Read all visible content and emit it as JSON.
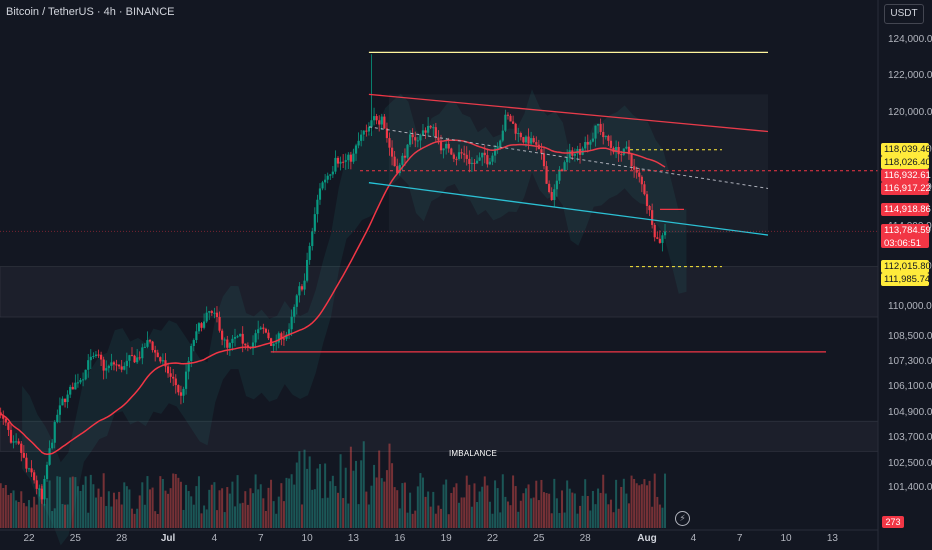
{
  "header": {
    "symbol_title": "Bitcoin / TetherUS · 4h · BINANCE",
    "currency": "USDT"
  },
  "colors": {
    "background": "#131722",
    "up": "#26a69a",
    "down": "#ef5350",
    "up_body": "#089981",
    "down_body": "#f23645",
    "ma_line": "#f23645",
    "channel_upper": "#f23645",
    "channel_lower": "#26c6da",
    "high_line": "#fff59d",
    "yellow_tag": "#ffeb3b",
    "red_tag": "#f23645"
  },
  "chart_data": {
    "type": "candlestick",
    "timeframe": "4h",
    "x_ticks": [
      "22",
      "25",
      "28",
      "Jul",
      "4",
      "7",
      "10",
      "13",
      "16",
      "19",
      "22",
      "25",
      "28",
      "Aug",
      "4",
      "7",
      "10",
      "13"
    ],
    "y_ticks": [
      101400,
      102500,
      103700,
      104900,
      106100,
      107300,
      108500,
      110000,
      112000,
      114000,
      116000,
      118000,
      120000,
      122000,
      124000
    ],
    "y_tick_labels": [
      "101,400.00",
      "102,500.00",
      "103,700.00",
      "104,900.00",
      "106,100.00",
      "107,300.00",
      "108,500.00",
      "110,000.00",
      "112,000.00",
      "114,000.00",
      "116,000.00",
      "118,000.00",
      "120,000.00",
      "122,000.00",
      "124,000.00"
    ],
    "y_scale": "log",
    "ylim": [
      100600,
      124600
    ],
    "last_price": 113784.59,
    "last_price_label": "113,784.59",
    "bar_countdown": "03:06:51",
    "price_tags": [
      {
        "value": 118039.46,
        "label": "118,039.46",
        "color": "yellow"
      },
      {
        "value": 118026.4,
        "label": "118,026.40",
        "color": "yellow"
      },
      {
        "value": 116932.61,
        "label": "116,932.61",
        "color": "red"
      },
      {
        "value": 116917.22,
        "label": "116,917.22",
        "color": "red"
      },
      {
        "value": 114918.86,
        "label": "114,918.86",
        "color": "red"
      },
      {
        "value": 112015.8,
        "label": "112,015.80",
        "color": "yellow"
      },
      {
        "value": 111985.74,
        "label": "111,985.74",
        "color": "yellow"
      }
    ],
    "volume_last_label": "273",
    "annotations": [
      {
        "type": "zone",
        "label": "IMBALANCE",
        "from": 103100,
        "to": 104500
      },
      {
        "type": "zone",
        "label": "",
        "from": 109500,
        "to": 112000
      },
      {
        "type": "hline",
        "label": "",
        "value": 123300
      },
      {
        "type": "hline",
        "label": "",
        "value": 107800
      },
      {
        "type": "channel_upper",
        "label": "",
        "start": 121000,
        "end": 119000
      },
      {
        "type": "channel_lower",
        "label": "",
        "start": 116300,
        "end": 113600
      }
    ],
    "anchors": [
      {
        "date": "2025-06-20",
        "close": 103500
      },
      {
        "date": "2025-06-21",
        "close": 102300
      },
      {
        "date": "2025-06-22",
        "close": 100900
      },
      {
        "date": "2025-06-23",
        "close": 104800
      },
      {
        "date": "2025-06-24",
        "close": 106000
      },
      {
        "date": "2025-06-25",
        "close": 107400
      },
      {
        "date": "2025-06-26",
        "close": 106900
      },
      {
        "date": "2025-06-27",
        "close": 107100
      },
      {
        "date": "2025-06-28",
        "close": 107300
      },
      {
        "date": "2025-06-29",
        "close": 108300
      },
      {
        "date": "2025-06-30",
        "close": 107100
      },
      {
        "date": "2025-07-01",
        "close": 105700
      },
      {
        "date": "2025-07-02",
        "close": 108800
      },
      {
        "date": "2025-07-03",
        "close": 109700
      },
      {
        "date": "2025-07-04",
        "close": 108000
      },
      {
        "date": "2025-07-05",
        "close": 108200
      },
      {
        "date": "2025-07-06",
        "close": 108900
      },
      {
        "date": "2025-07-07",
        "close": 108200
      },
      {
        "date": "2025-07-08",
        "close": 108900
      },
      {
        "date": "2025-07-09",
        "close": 111300
      },
      {
        "date": "2025-07-10",
        "close": 116000
      },
      {
        "date": "2025-07-11",
        "close": 117600
      },
      {
        "date": "2025-07-12",
        "close": 117400
      },
      {
        "date": "2025-07-13",
        "close": 119000
      },
      {
        "date": "2025-07-14",
        "close": 119800
      },
      {
        "date": "2025-07-15",
        "close": 116800
      },
      {
        "date": "2025-07-16",
        "close": 118700
      },
      {
        "date": "2025-07-17",
        "close": 119300
      },
      {
        "date": "2025-07-18",
        "close": 118100
      },
      {
        "date": "2025-07-19",
        "close": 117900
      },
      {
        "date": "2025-07-20",
        "close": 117300
      },
      {
        "date": "2025-07-21",
        "close": 117400
      },
      {
        "date": "2025-07-22",
        "close": 119900
      },
      {
        "date": "2025-07-23",
        "close": 118700
      },
      {
        "date": "2025-07-24",
        "close": 118300
      },
      {
        "date": "2025-07-25",
        "close": 115400
      },
      {
        "date": "2025-07-26",
        "close": 117600
      },
      {
        "date": "2025-07-27",
        "close": 118100
      },
      {
        "date": "2025-07-28",
        "close": 119400
      },
      {
        "date": "2025-07-29",
        "close": 117900
      },
      {
        "date": "2025-07-30",
        "close": 117800
      },
      {
        "date": "2025-07-31",
        "close": 115700
      },
      {
        "date": "2025-08-01",
        "close": 113200
      },
      {
        "date": "2025-08-02",
        "close": 113784
      }
    ]
  }
}
